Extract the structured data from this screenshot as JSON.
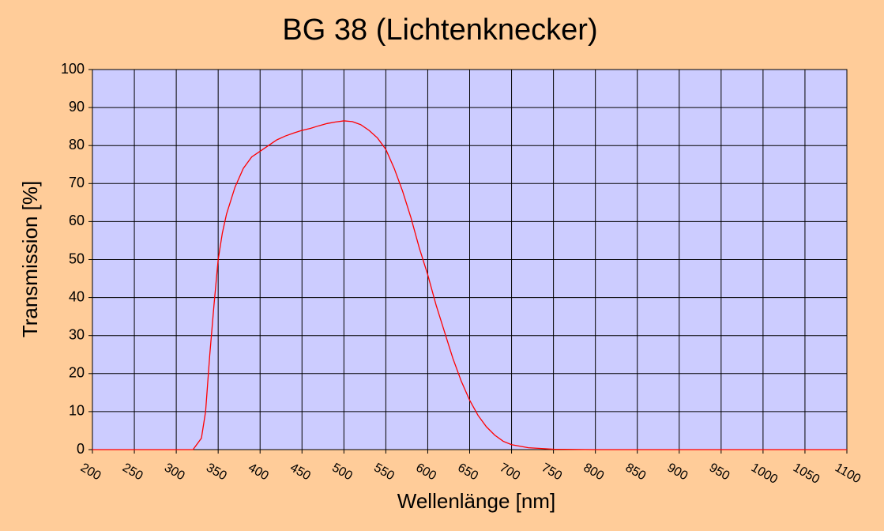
{
  "chart_data": {
    "type": "line",
    "title": "BG 38 (Lichtenknecker)",
    "x_label": "Wellenlänge [nm]",
    "y_label": "Transmission [%]",
    "x": [
      200,
      260,
      300,
      320,
      330,
      335,
      340,
      345,
      350,
      355,
      360,
      370,
      380,
      390,
      400,
      410,
      420,
      430,
      440,
      450,
      460,
      470,
      480,
      490,
      500,
      510,
      520,
      530,
      540,
      550,
      560,
      570,
      580,
      590,
      600,
      610,
      620,
      630,
      640,
      650,
      660,
      670,
      680,
      690,
      700,
      720,
      750,
      800,
      900,
      1000,
      1100
    ],
    "series": [
      {
        "name": "BG 38",
        "color": "#ff0000",
        "values": [
          0,
          0,
          0,
          0,
          3,
          10,
          25,
          38,
          50,
          57,
          62,
          69,
          74,
          77,
          78.5,
          80,
          81.5,
          82.5,
          83.3,
          84,
          84.5,
          85.2,
          85.8,
          86.2,
          86.5,
          86.3,
          85.5,
          84,
          82,
          79,
          74,
          68,
          61,
          53,
          46,
          38,
          31,
          24,
          18,
          13,
          9,
          6,
          3.8,
          2.2,
          1.3,
          0.5,
          0.1,
          0,
          0,
          0,
          0
        ]
      }
    ],
    "xlim": [
      200,
      1100
    ],
    "xticks": [
      200,
      250,
      300,
      350,
      400,
      450,
      500,
      550,
      600,
      650,
      700,
      750,
      800,
      850,
      900,
      950,
      1000,
      1050,
      1100
    ],
    "ylim": [
      0,
      100
    ],
    "yticks": [
      0,
      10,
      20,
      30,
      40,
      50,
      60,
      70,
      80,
      90,
      100
    ],
    "grid": true
  }
}
